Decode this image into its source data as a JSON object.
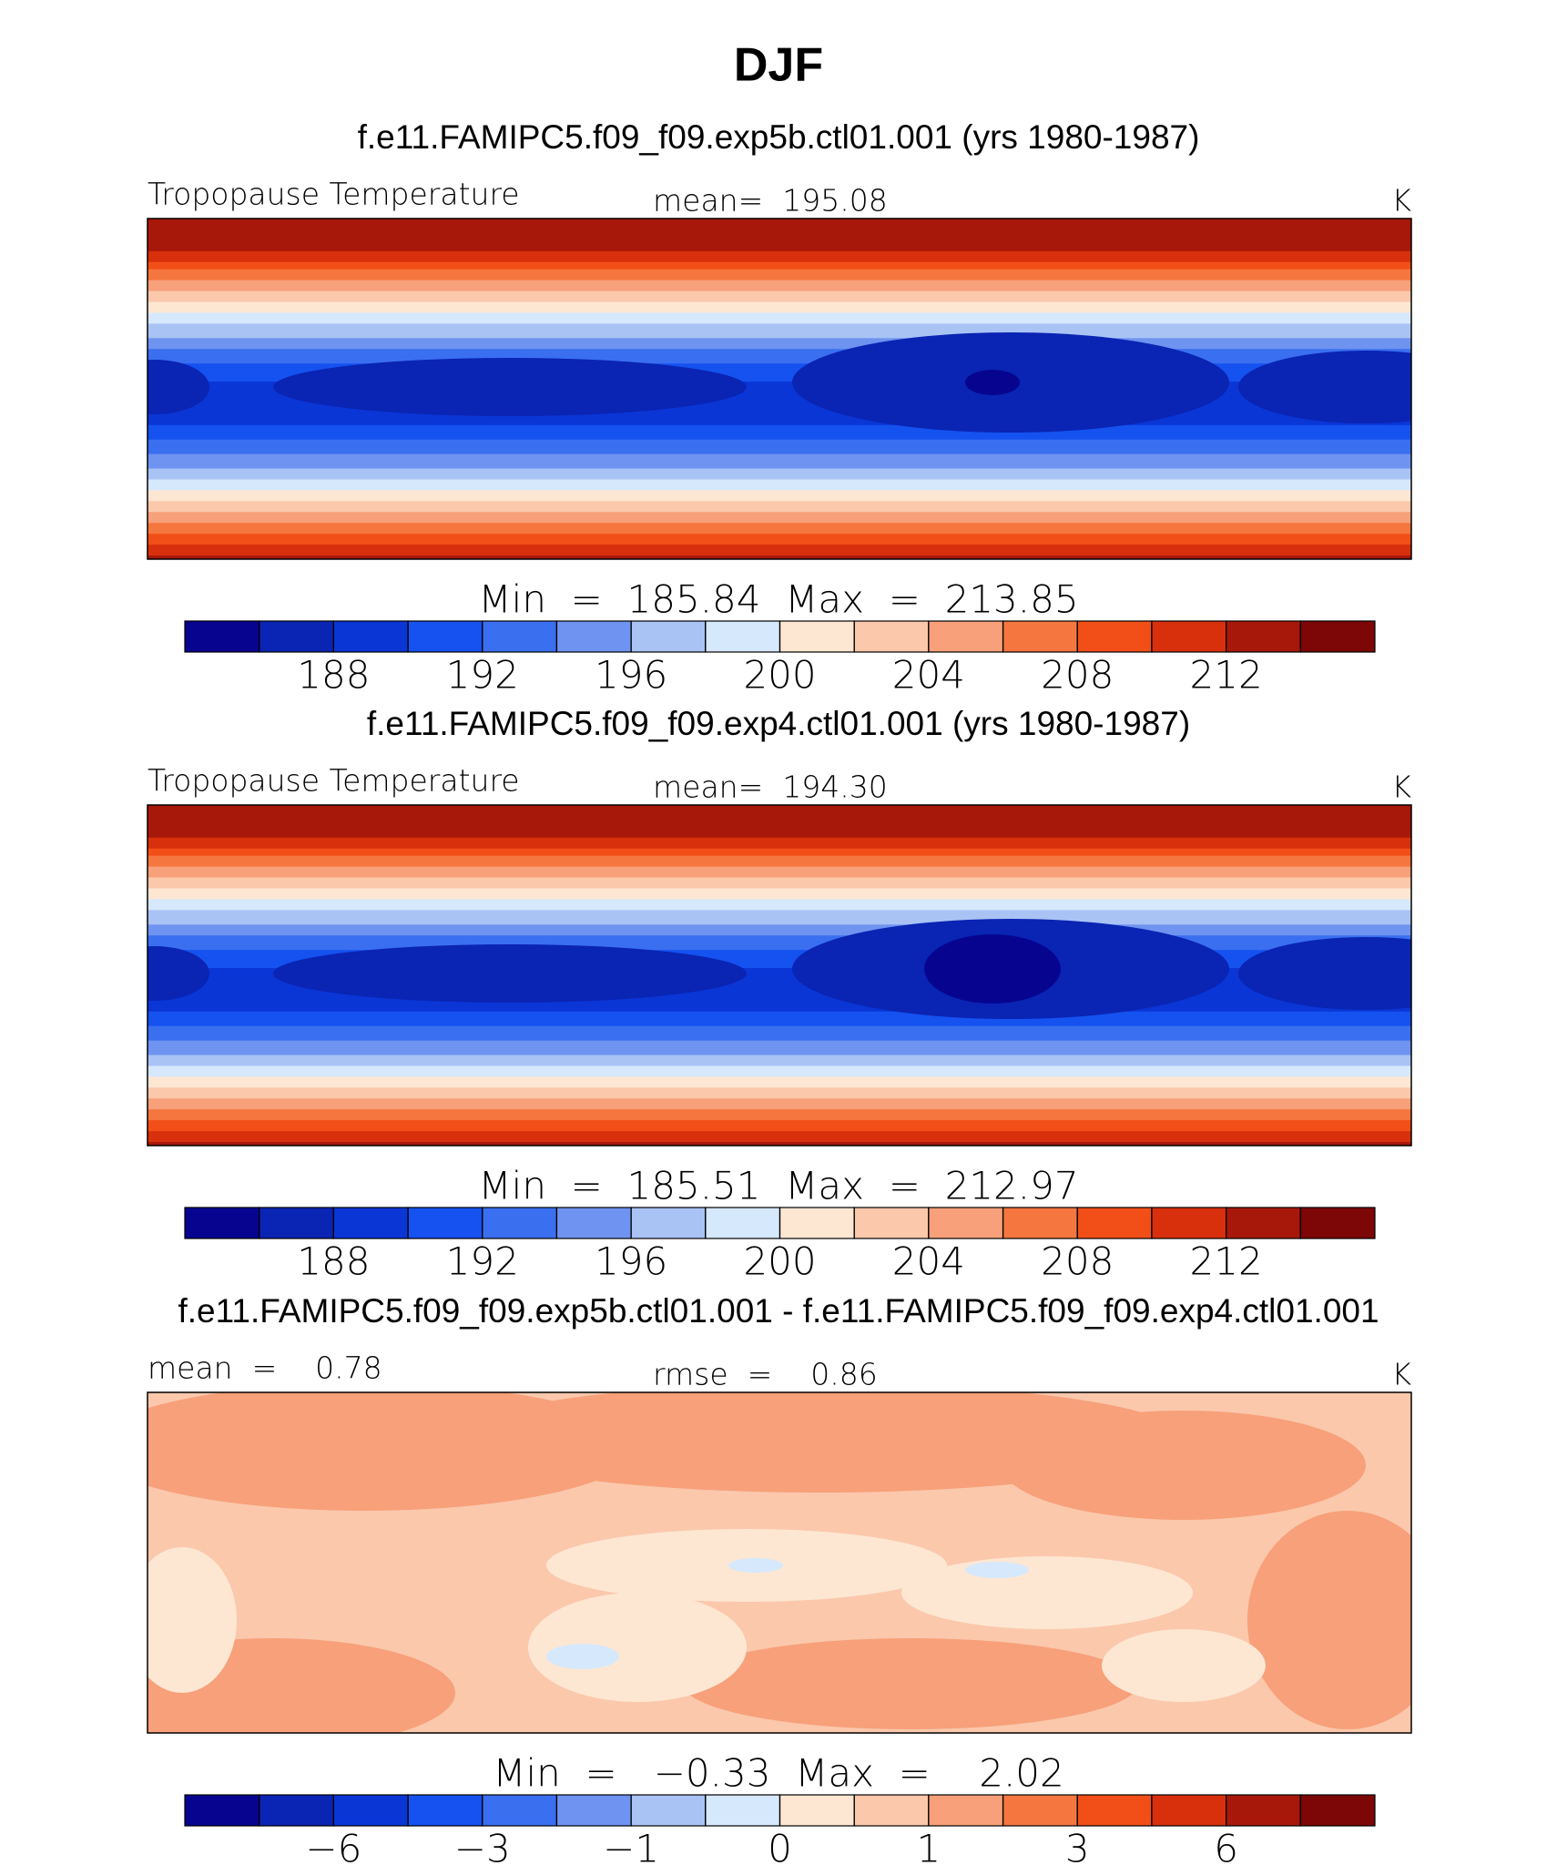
{
  "title": "DJF",
  "palette": [
    "#07058f",
    "#0a24b3",
    "#0a36d6",
    "#1552f0",
    "#3a6ff0",
    "#6e93f0",
    "#a9c3f5",
    "#d6e8fb",
    "#fde7d3",
    "#fbc8ac",
    "#f7a07a",
    "#f5763f",
    "#f24f18",
    "#d8300c",
    "#a8180a",
    "#7d0606"
  ],
  "panels": [
    {
      "subtitle": "f.e11.FAMIPC5.f09_f09.exp5b.ctl01.001 (yrs 1980-1987)",
      "left_label": "Tropopause Temperature",
      "center_label": "mean=  195.08",
      "right_label": "K",
      "min_max": "Min  =  185.84  Max  =  213.85",
      "levels": [
        186,
        188,
        190,
        192,
        194,
        196,
        198,
        200,
        202,
        204,
        206,
        208,
        210,
        212,
        214
      ],
      "ticks": [
        188,
        192,
        196,
        200,
        204,
        208,
        212
      ]
    },
    {
      "subtitle": "f.e11.FAMIPC5.f09_f09.exp4.ctl01.001 (yrs 1980-1987)",
      "left_label": "Tropopause Temperature",
      "center_label": "mean=  194.30",
      "right_label": "K",
      "min_max": "Min  =  185.51  Max  =  212.97",
      "levels": [
        186,
        188,
        190,
        192,
        194,
        196,
        198,
        200,
        202,
        204,
        206,
        208,
        210,
        212,
        214
      ],
      "ticks": [
        188,
        192,
        196,
        200,
        204,
        208,
        212
      ]
    },
    {
      "subtitle": "f.e11.FAMIPC5.f09_f09.exp5b.ctl01.001 - f.e11.FAMIPC5.f09_f09.exp4.ctl01.001",
      "left_label": "mean  =    0.78",
      "center_label": "rmse  =    0.86",
      "right_label": "K",
      "min_max": "Min  =   −0.33  Max  =    2.02",
      "levels": [
        -8,
        -6,
        -5,
        -3,
        -2,
        -1,
        -0.5,
        0,
        0.5,
        1,
        2,
        3,
        5,
        6,
        8
      ],
      "ticks": [
        {
          "value": -6,
          "label": "−6"
        },
        {
          "value": -3,
          "label": "−3"
        },
        {
          "value": -1,
          "label": "−1"
        },
        0,
        1,
        3,
        6
      ]
    }
  ]
}
